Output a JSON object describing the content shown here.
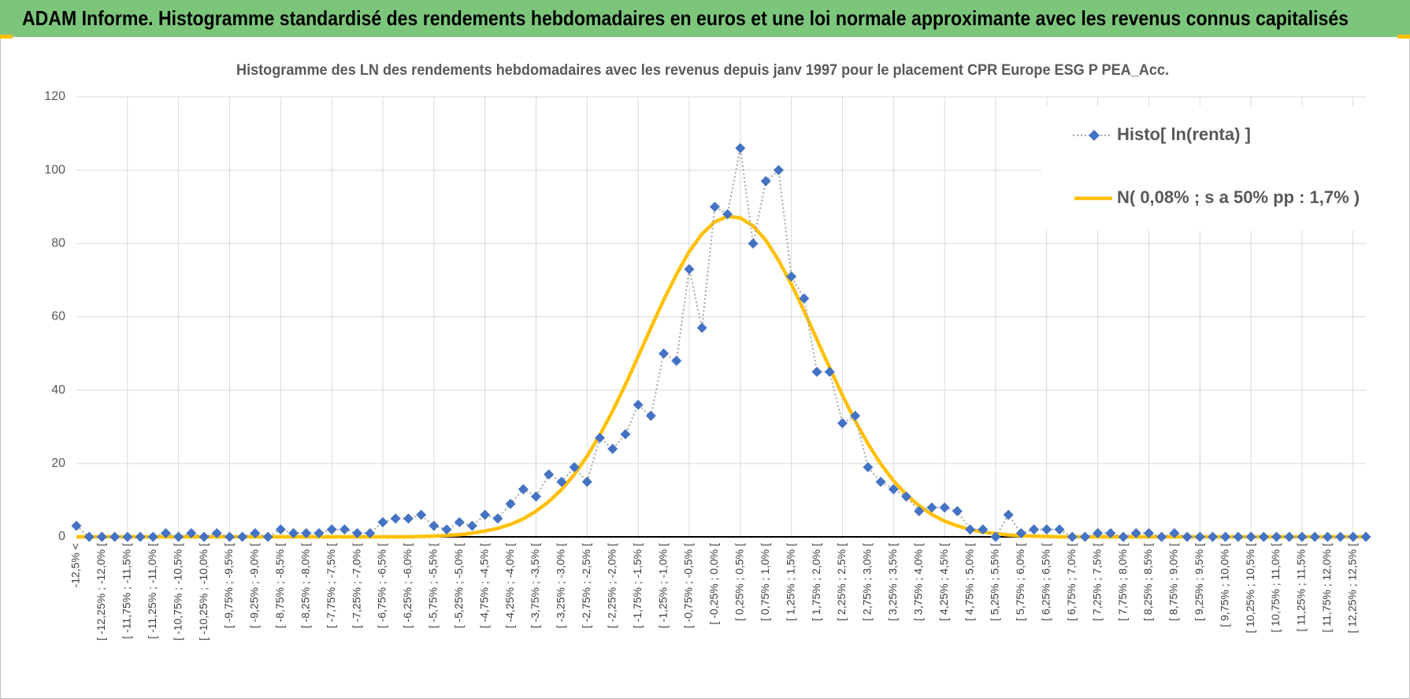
{
  "header": {
    "title": "ADAM Informe. Histogramme standardisé des rendements hebdomadaires en euros et une loi normale approximante avec les revenus connus capitalisés"
  },
  "chart_data": {
    "type": "line",
    "title": "Histogramme des LN des rendements hebdomadaires avec les revenus depuis janv 1997 pour le placement CPR Europe ESG P PEA_Acc.",
    "categories": [
      "-12,5% <",
      null,
      "[ -12,25% ; -12,0% [",
      null,
      "[ -11,75% ; -11,5% [",
      null,
      "[ -11,25% ; -11,0% [",
      null,
      "[ -10,75% ; -10,5% [",
      null,
      "[ -10,25% ; -10,0% [",
      null,
      "[ -9,75% ; -9,5% [",
      null,
      "[ -9,25% ; -9,0% [",
      null,
      "[ -8,75% ; -8,5% [",
      null,
      "[ -8,25% ; -8,0% [",
      null,
      "[ -7,75% ; -7,5% [",
      null,
      "[ -7,25% ; -7,0% [",
      null,
      "[ -6,75% ; -6,5% [",
      null,
      "[ -6,25% ; -6,0% [",
      null,
      "[ -5,75% ; -5,5% [",
      null,
      "[ -5,25% ; -5,0% [",
      null,
      "[ -4,75% ; -4,5% [",
      null,
      "[ -4,25% ; -4,0% [",
      null,
      "[ -3,75% ; -3,5% [",
      null,
      "[ -3,25% ; -3,0% [",
      null,
      "[ -2,75% ; -2,5% [",
      null,
      "[ -2,25% ; -2,0% [",
      null,
      "[ -1,75% ; -1,5% [",
      null,
      "[ -1,25% ; -1,0% [",
      null,
      "[ -0,75% ; -0,5% [",
      null,
      "[ -0,25% ; 0,0% [",
      null,
      "[ 0,25% ; 0,5% [",
      null,
      "[ 0,75% ; 1,0% [",
      null,
      "[ 1,25% ; 1,5% [",
      null,
      "[ 1,75% ; 2,0% [",
      null,
      "[ 2,25% ; 2,5% [",
      null,
      "[ 2,75% ; 3,0% [",
      null,
      "[ 3,25% ; 3,5% [",
      null,
      "[ 3,75% ; 4,0% [",
      null,
      "[ 4,25% ; 4,5% [",
      null,
      "[ 4,75% ; 5,0% [",
      null,
      "[ 5,25% ; 5,5% [",
      null,
      "[ 5,75% ; 6,0% [",
      null,
      "[ 6,25% ; 6,5% [",
      null,
      "[ 6,75% ; 7,0% [",
      null,
      "[ 7,25% ; 7,5% [",
      null,
      "[ 7,75% ; 8,0% [",
      null,
      "[ 8,25% ; 8,5% [",
      null,
      "[ 8,75% ; 9,0% [",
      null,
      "[ 9,25% ; 9,5% [",
      null,
      "[ 9,75% ; 10,0% [",
      null,
      "[ 10,25% ; 10,5% [",
      null,
      "[ 10,75% ; 11,0% [",
      null,
      "[ 11,25% ; 11,5% [",
      null,
      "[ 11,75% ; 12,0% [",
      null,
      "[ 12,25% ; 12,5% [",
      null
    ],
    "series": [
      {
        "name": "Histo[ ln(renta) ]",
        "color": "#4472c4",
        "marker": "diamond",
        "values": [
          3,
          0,
          0,
          0,
          0,
          0,
          0,
          1,
          0,
          1,
          0,
          1,
          0,
          0,
          1,
          0,
          2,
          1,
          1,
          1,
          2,
          2,
          1,
          1,
          4,
          5,
          5,
          6,
          3,
          2,
          4,
          3,
          6,
          5,
          9,
          13,
          11,
          17,
          15,
          19,
          15,
          27,
          24,
          28,
          36,
          33,
          50,
          48,
          73,
          57,
          90,
          88,
          106,
          80,
          97,
          100,
          71,
          65,
          45,
          45,
          31,
          33,
          19,
          15,
          13,
          11,
          7,
          8,
          8,
          7,
          2,
          2,
          0,
          6,
          1,
          2,
          2,
          2,
          0,
          0,
          1,
          1,
          0,
          1,
          1,
          0,
          1,
          0,
          0,
          0,
          0,
          0,
          0,
          0,
          0,
          0,
          0,
          0,
          0,
          0,
          0,
          0
        ]
      },
      {
        "name": "N( 0,08% ; s a 50% pp : 1,7% )",
        "color": "#ffc000",
        "values": [
          0,
          0,
          0,
          0,
          0,
          0,
          0,
          0,
          0,
          0,
          0,
          0,
          0,
          0,
          0,
          0,
          0,
          0,
          0,
          0,
          0,
          0,
          0,
          0,
          0,
          0,
          0,
          0.1,
          0.2,
          0.4,
          0.6,
          1.0,
          1.6,
          2.3,
          3.4,
          4.9,
          7.0,
          9.6,
          12.9,
          17.0,
          22.0,
          27.8,
          34.3,
          41.5,
          49.2,
          57.0,
          64.6,
          71.6,
          77.8,
          82.6,
          85.9,
          87.4,
          87.0,
          84.8,
          80.9,
          75.4,
          68.9,
          61.6,
          53.8,
          46.1,
          38.6,
          31.6,
          25.4,
          19.9,
          15.3,
          11.5,
          8.5,
          6.1,
          4.3,
          3.0,
          2.0,
          1.3,
          0.9,
          0.5,
          0.3,
          0.2,
          0.1,
          0,
          0,
          0,
          0,
          0,
          0,
          0,
          0,
          0,
          0,
          0,
          0,
          0,
          0,
          0,
          0,
          0,
          0,
          0,
          0,
          0,
          0,
          0,
          0,
          0
        ]
      }
    ],
    "ylim": [
      0,
      120
    ],
    "yticks": [
      0,
      20,
      40,
      60,
      80,
      100,
      120
    ],
    "grid": true,
    "legend": "top-right"
  }
}
